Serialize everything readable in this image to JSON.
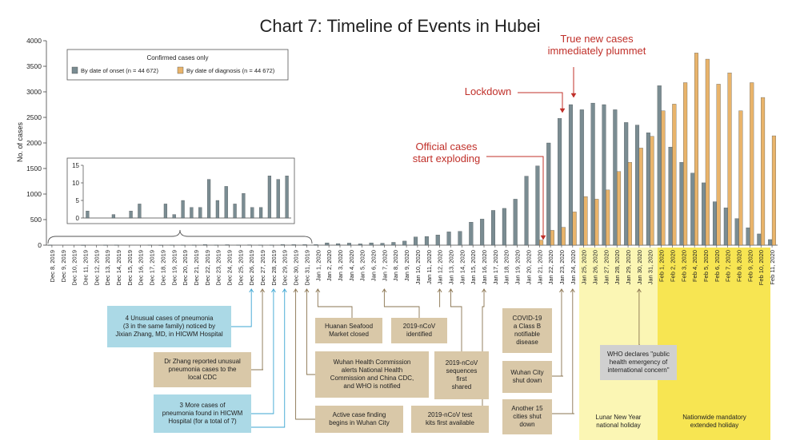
{
  "chart_data": {
    "type": "bar",
    "title": "Chart 7: Timeline of Events in Hubei",
    "ylabel": "No. of cases",
    "ylim": [
      0,
      4000
    ],
    "yticks": [
      0,
      500,
      1000,
      1500,
      2000,
      2500,
      3000,
      3500,
      4000
    ],
    "categories": [
      "Dec 8, 2019",
      "Dec 9, 2019",
      "Dec 10, 2019",
      "Dec 11, 2019",
      "Dec 12, 2019",
      "Dec 13, 2019",
      "Dec 14, 2019",
      "Dec 15, 2019",
      "Dec 16, 2019",
      "Dec 17, 2019",
      "Dec 18, 2019",
      "Dec 19, 2019",
      "Dec 20, 2019",
      "Dec 21, 2019",
      "Dec 22, 2019",
      "Dec 23, 2019",
      "Dec 24, 2019",
      "Dec 25, 2019",
      "Dec 26, 2019",
      "Dec 27, 2019",
      "Dec 28, 2019",
      "Dec 29, 2019",
      "Dec 30, 2019",
      "Dec 31, 2019",
      "Jan 1, 2020",
      "Jan 2, 2020",
      "Jan 3, 2020",
      "Jan 4, 2020",
      "Jan 5, 2020",
      "Jan 6, 2020",
      "Jan 7, 2020",
      "Jan 8, 2020",
      "Jan 9, 2020",
      "Jan 10, 2020",
      "Jan 11, 2020",
      "Jan 12, 2020",
      "Jan 13, 2020",
      "Jan 14, 2020",
      "Jan 15, 2020",
      "Jan 16, 2020",
      "Jan 17, 2020",
      "Jan 18, 2020",
      "Jan 19, 2020",
      "Jan 20, 2020",
      "Jan 21, 2020",
      "Jan 22, 2020",
      "Jan 23, 2020",
      "Jan 24, 2020",
      "Jan 25, 2020",
      "Jan 26, 2020",
      "Jan 27, 2020",
      "Jan 28, 2020",
      "Jan 29, 2020",
      "Jan 30, 2020",
      "Jan 31, 2020",
      "Feb 1, 2020",
      "Feb 2, 2020",
      "Feb 3, 2020",
      "Feb 4, 2020",
      "Feb 5, 2020",
      "Feb 6, 2020",
      "Feb 7, 2020",
      "Feb 8, 2020",
      "Feb 9, 2020",
      "Feb 10, 2020",
      "Feb 11, 2020"
    ],
    "series": [
      {
        "name": "By date of onset (n = 44 672)",
        "color": "#7a8c92",
        "values": [
          2,
          0,
          0,
          1,
          0,
          2,
          4,
          0,
          0,
          4,
          1,
          5,
          3,
          3,
          11,
          5,
          9,
          4,
          7,
          3,
          3,
          12,
          11,
          12,
          13,
          45,
          30,
          40,
          25,
          45,
          38,
          55,
          80,
          160,
          170,
          200,
          260,
          270,
          450,
          510,
          680,
          720,
          900,
          1350,
          1550,
          2000,
          2480,
          2750,
          2650,
          2780,
          2750,
          2650,
          2400,
          2350,
          2200,
          3120,
          1920,
          1620,
          1410,
          1220,
          850,
          730,
          520,
          340,
          220,
          110
        ]
      },
      {
        "name": "By date of diagnosis (n = 44 672)",
        "color": "#e9b46b",
        "values": [
          0,
          0,
          0,
          0,
          0,
          0,
          0,
          0,
          0,
          0,
          0,
          0,
          0,
          0,
          0,
          0,
          0,
          0,
          0,
          0,
          0,
          0,
          0,
          0,
          0,
          0,
          0,
          0,
          0,
          0,
          0,
          0,
          0,
          0,
          0,
          0,
          0,
          0,
          0,
          0,
          0,
          0,
          0,
          0,
          100,
          290,
          350,
          650,
          950,
          900,
          1080,
          1440,
          1620,
          1900,
          2130,
          2630,
          2760,
          3180,
          3760,
          3640,
          3150,
          3370,
          2630,
          3180,
          2890,
          2140
        ]
      }
    ],
    "legend": {
      "title": "Confirmed cases only",
      "placement": "top-left"
    },
    "inset": {
      "ylim": [
        0,
        15
      ],
      "yticks": [
        0,
        5,
        10,
        15
      ],
      "range": "Dec 8, 2019 – Dec 31, 2019"
    }
  },
  "callouts": {
    "official": "Official cases\nstart exploding",
    "lockdown": "Lockdown",
    "plummet": "True new cases\nimmediately plummet"
  },
  "boxes": {
    "b1": "4 Unusual cases of pneumonia\n(3 in the same family) noticed by\nJixian Zhang, MD, in HICWM Hospital",
    "b2": "Dr Zhang reported unusual\npneumonia cases to the\nlocal CDC",
    "b3": "3 More cases of\npneumonia found in HICWM\nHospital (for a total of 7)",
    "b4": "Huanan Seafood\nMarket closed",
    "b5": "2019-nCoV\nidentified",
    "b6": "Wuhan Health Commission\nalerts National Health\nCommission and China CDC,\nand WHO is notified",
    "b7": "2019-nCoV\nsequences\nfirst\nshared",
    "b8": "Active case finding\nbegins in Wuhan City",
    "b9": "2019-nCoV test\nkits first available",
    "b10": "COVID-19\na Class B\nnotifiable\ndisease",
    "b11": "Wuhan City\nshut down",
    "b12": "Another 15\ncities shut\ndown",
    "b13": "WHO declares \"public\nhealth emergency of\ninternational concern\""
  },
  "bands": {
    "lunar": "Lunar New Year\nnational holiday",
    "nationwide": "Nationwide mandatory\nextended holiday"
  },
  "colors": {
    "onset": "#7a8c92",
    "diagnosis": "#e9b46b",
    "callout": "#c0302a",
    "lunar_band": "#fbf6b4",
    "nationwide_band": "#f7e552"
  }
}
